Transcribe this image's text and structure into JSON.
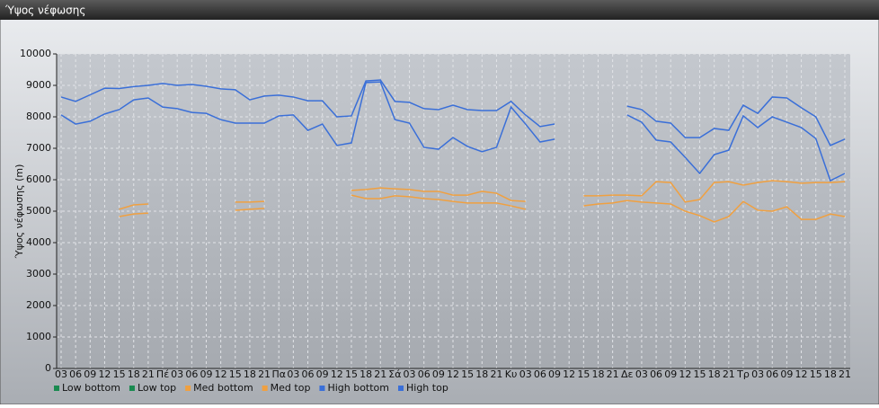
{
  "chart_data": {
    "type": "line",
    "title": "Ύψος νέφωσης",
    "ylabel": "Ύψος νέφωσης (m)",
    "categories": [
      "03",
      "06",
      "09",
      "12",
      "15",
      "18",
      "21",
      "Πέ",
      "03",
      "06",
      "09",
      "12",
      "15",
      "18",
      "21",
      "Πα",
      "03",
      "06",
      "09",
      "12",
      "15",
      "18",
      "21",
      "Σά",
      "03",
      "06",
      "09",
      "12",
      "15",
      "18",
      "21",
      "Κυ",
      "03",
      "06",
      "09",
      "12",
      "15",
      "18",
      "21",
      "Δε",
      "03",
      "06",
      "09",
      "12",
      "15",
      "18",
      "21",
      "Τρ",
      "03",
      "06",
      "09",
      "12",
      "15",
      "18",
      "21"
    ],
    "ylim": [
      0,
      10000
    ],
    "yticks": [
      0,
      1000,
      2000,
      3000,
      4000,
      5000,
      6000,
      7000,
      8000,
      9000,
      10000
    ],
    "grid": true,
    "legend": "bottom",
    "series": [
      {
        "name": "Low bottom",
        "color": "#1a8a50",
        "values": [
          null,
          null,
          null,
          null,
          null,
          null,
          null,
          null,
          null,
          null,
          null,
          null,
          null,
          null,
          null,
          null,
          null,
          null,
          null,
          null,
          null,
          null,
          null,
          null,
          null,
          null,
          null,
          null,
          null,
          null,
          null,
          null,
          null,
          null,
          null,
          null,
          null,
          null,
          null,
          null,
          null,
          null,
          null,
          null,
          null,
          null,
          null,
          null,
          null,
          null,
          null,
          null,
          null,
          null,
          null
        ]
      },
      {
        "name": "Low top",
        "color": "#1a8a50",
        "values": [
          null,
          null,
          null,
          null,
          null,
          null,
          null,
          null,
          null,
          null,
          null,
          null,
          null,
          null,
          null,
          null,
          null,
          null,
          null,
          null,
          null,
          null,
          null,
          null,
          null,
          null,
          null,
          null,
          null,
          null,
          null,
          null,
          null,
          null,
          null,
          null,
          null,
          null,
          null,
          null,
          null,
          null,
          null,
          null,
          null,
          null,
          null,
          null,
          null,
          null,
          null,
          null,
          null,
          null,
          null
        ]
      },
      {
        "name": "Med bottom",
        "color": "#f0a040",
        "values": [
          null,
          null,
          null,
          null,
          4830,
          4910,
          4940,
          null,
          null,
          null,
          null,
          null,
          5030,
          5060,
          5090,
          null,
          null,
          null,
          null,
          null,
          5510,
          5400,
          5400,
          5490,
          5460,
          5400,
          5370,
          5310,
          5260,
          5260,
          5260,
          5170,
          5060,
          null,
          null,
          null,
          5170,
          5230,
          5260,
          5340,
          5290,
          5260,
          5230,
          5000,
          4860,
          4660,
          4830,
          5310,
          5030,
          5000,
          5140,
          4740,
          4740,
          4910,
          4830
        ]
      },
      {
        "name": "Med top",
        "color": "#f0a040",
        "values": [
          null,
          null,
          null,
          null,
          5060,
          5200,
          5230,
          null,
          null,
          null,
          null,
          null,
          5290,
          5290,
          5310,
          null,
          null,
          null,
          null,
          null,
          5660,
          5690,
          5740,
          5710,
          5690,
          5630,
          5630,
          5510,
          5510,
          5630,
          5570,
          5340,
          5310,
          null,
          null,
          null,
          5490,
          5490,
          5510,
          5510,
          5490,
          5940,
          5910,
          5290,
          5370,
          5910,
          5940,
          5830,
          5910,
          5970,
          5940,
          5890,
          5910,
          5910,
          5940
        ]
      },
      {
        "name": "High bottom",
        "color": "#3a6fd8",
        "values": [
          8060,
          7770,
          7860,
          8090,
          8230,
          8540,
          8600,
          8310,
          8260,
          8140,
          8110,
          7910,
          7800,
          7800,
          7800,
          8030,
          8060,
          7570,
          7770,
          7090,
          7170,
          9090,
          9110,
          7910,
          7800,
          7030,
          6970,
          7340,
          7060,
          6890,
          7030,
          8310,
          7770,
          7200,
          7290,
          null,
          null,
          null,
          null,
          8060,
          7830,
          7260,
          7200,
          6710,
          6200,
          6800,
          6940,
          8030,
          7660,
          8000,
          7830,
          7660,
          7310,
          5970,
          6200
        ]
      },
      {
        "name": "High top",
        "color": "#3a6fd8",
        "values": [
          8630,
          8490,
          8700,
          8910,
          8900,
          8960,
          9000,
          9060,
          9000,
          9030,
          8970,
          8890,
          8860,
          8540,
          8660,
          8690,
          8630,
          8510,
          8510,
          8000,
          8030,
          9140,
          9170,
          8490,
          8460,
          8260,
          8230,
          8370,
          8230,
          8200,
          8200,
          8490,
          8060,
          7690,
          7770,
          null,
          null,
          null,
          null,
          8340,
          8230,
          7860,
          7800,
          7340,
          7340,
          7630,
          7570,
          8370,
          8110,
          8630,
          8600,
          8290,
          8000,
          7090,
          7290
        ]
      }
    ]
  }
}
